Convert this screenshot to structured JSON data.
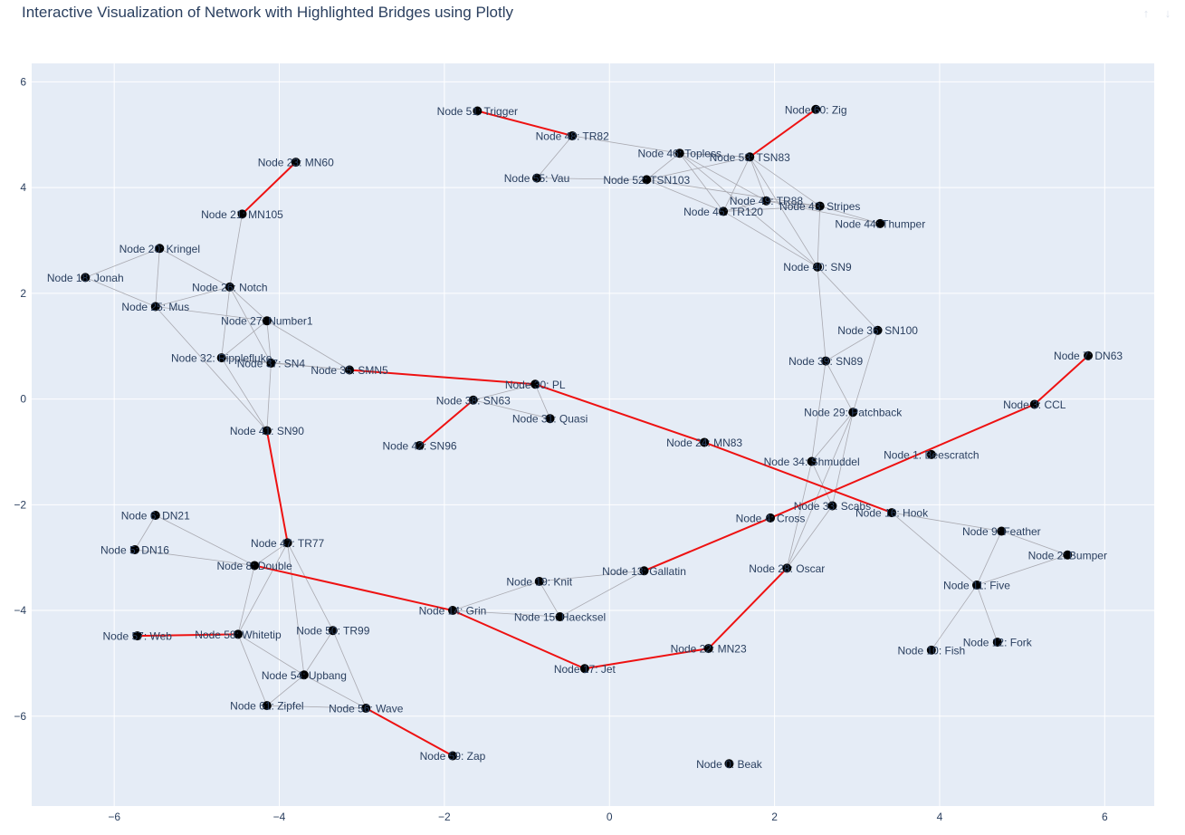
{
  "title": "Interactive Visualization of Network with Highlighted Bridges using Plotly",
  "modebar": {
    "icons": [
      "zoom-in-icon",
      "zoom-out-icon"
    ]
  },
  "colors": {
    "plot_bg": "#e5ecf6",
    "grid": "#ffffff",
    "edge": "#a9a9b0",
    "bridge": "#ee1111",
    "node": "#000000",
    "text": "#2a3f5f"
  },
  "chart_data": {
    "type": "scatter",
    "title": "Interactive Visualization of Network with Highlighted Bridges using Plotly",
    "xlabel": "",
    "ylabel": "",
    "xlim": [
      -7.0,
      6.6
    ],
    "ylim": [
      -7.7,
      6.35
    ],
    "xticks": [
      -6,
      -4,
      -2,
      0,
      2,
      4,
      6
    ],
    "yticks": [
      6,
      4,
      2,
      0,
      -2,
      -4,
      -6
    ],
    "grid": true,
    "nodes": [
      {
        "id": 0,
        "label": "Node 0: Beak",
        "x": 1.45,
        "y": -6.9
      },
      {
        "id": 1,
        "label": "Node 1: Beescratch",
        "x": 3.9,
        "y": -1.05
      },
      {
        "id": 2,
        "label": "Node 2: Bumper",
        "x": 5.55,
        "y": -2.95
      },
      {
        "id": 3,
        "label": "Node 3: CCL",
        "x": 5.15,
        "y": -0.1
      },
      {
        "id": 4,
        "label": "Node 4: Cross",
        "x": 1.95,
        "y": -2.25
      },
      {
        "id": 5,
        "label": "Node 5: DN16",
        "x": -5.75,
        "y": -2.85
      },
      {
        "id": 6,
        "label": "Node 6: DN21",
        "x": -5.5,
        "y": -2.2
      },
      {
        "id": 7,
        "label": "Node 7: DN63",
        "x": 5.8,
        "y": 0.82
      },
      {
        "id": 8,
        "label": "Node 8: Double",
        "x": -4.3,
        "y": -3.15
      },
      {
        "id": 9,
        "label": "Node 9: Feather",
        "x": 4.75,
        "y": -2.5
      },
      {
        "id": 10,
        "label": "Node 10: Fish",
        "x": 3.9,
        "y": -4.75
      },
      {
        "id": 11,
        "label": "Node 11: Five",
        "x": 4.45,
        "y": -3.52
      },
      {
        "id": 12,
        "label": "Node 12: Fork",
        "x": 4.7,
        "y": -4.6
      },
      {
        "id": 13,
        "label": "Node 13: Gallatin",
        "x": 0.42,
        "y": -3.25
      },
      {
        "id": 14,
        "label": "Node 14: Grin",
        "x": -1.9,
        "y": -4.0
      },
      {
        "id": 15,
        "label": "Node 15: Haecksel",
        "x": -0.6,
        "y": -4.12
      },
      {
        "id": 16,
        "label": "Node 16: Hook",
        "x": 3.42,
        "y": -2.15
      },
      {
        "id": 17,
        "label": "Node 17: Jet",
        "x": -0.3,
        "y": -5.1
      },
      {
        "id": 18,
        "label": "Node 18: Jonah",
        "x": -6.35,
        "y": 2.3
      },
      {
        "id": 19,
        "label": "Node 19: Knit",
        "x": -0.85,
        "y": -3.45
      },
      {
        "id": 20,
        "label": "Node 20: Kringel",
        "x": -5.45,
        "y": 2.85
      },
      {
        "id": 21,
        "label": "Node 21: MN105",
        "x": -4.45,
        "y": 3.5
      },
      {
        "id": 22,
        "label": "Node 22: MN23",
        "x": 1.2,
        "y": -4.72
      },
      {
        "id": 23,
        "label": "Node 23: MN60",
        "x": -3.8,
        "y": 4.48
      },
      {
        "id": 24,
        "label": "Node 24: MN83",
        "x": 1.15,
        "y": -0.82
      },
      {
        "id": 25,
        "label": "Node 25: Mus",
        "x": -5.5,
        "y": 1.75
      },
      {
        "id": 26,
        "label": "Node 26: Notch",
        "x": -4.6,
        "y": 2.12
      },
      {
        "id": 27,
        "label": "Node 27: Number1",
        "x": -4.15,
        "y": 1.48
      },
      {
        "id": 28,
        "label": "Node 28: Oscar",
        "x": 2.15,
        "y": -3.2
      },
      {
        "id": 29,
        "label": "Node 29: Patchback",
        "x": 2.95,
        "y": -0.25
      },
      {
        "id": 30,
        "label": "Node 30: PL",
        "x": -0.9,
        "y": 0.28
      },
      {
        "id": 31,
        "label": "Node 31: Quasi",
        "x": -0.72,
        "y": -0.37
      },
      {
        "id": 32,
        "label": "Node 32: Ripplefluke",
        "x": -4.7,
        "y": 0.78
      },
      {
        "id": 33,
        "label": "Node 33: Scabs",
        "x": 2.7,
        "y": -2.02
      },
      {
        "id": 34,
        "label": "Node 34: Shmuddel",
        "x": 2.45,
        "y": -1.18
      },
      {
        "id": 35,
        "label": "Node 35: SMN5",
        "x": -3.15,
        "y": 0.55
      },
      {
        "id": 36,
        "label": "Node 36: SN100",
        "x": 3.25,
        "y": 1.3
      },
      {
        "id": 37,
        "label": "Node 37: SN4",
        "x": -4.1,
        "y": 0.68
      },
      {
        "id": 38,
        "label": "Node 38: SN63",
        "x": -1.65,
        "y": -0.02
      },
      {
        "id": 39,
        "label": "Node 39: SN89",
        "x": 2.62,
        "y": 0.72
      },
      {
        "id": 40,
        "label": "Node 40: SN9",
        "x": 2.52,
        "y": 2.5
      },
      {
        "id": 41,
        "label": "Node 41: SN90",
        "x": -4.15,
        "y": -0.6
      },
      {
        "id": 42,
        "label": "Node 42: SN96",
        "x": -2.3,
        "y": -0.88
      },
      {
        "id": 43,
        "label": "Node 43: Stripes",
        "x": 2.55,
        "y": 3.65
      },
      {
        "id": 44,
        "label": "Node 44: Thumper",
        "x": 3.28,
        "y": 3.32
      },
      {
        "id": 45,
        "label": "Node 45: TR120",
        "x": 1.38,
        "y": 3.55
      },
      {
        "id": 46,
        "label": "Node 46: Topless",
        "x": 0.85,
        "y": 4.65
      },
      {
        "id": 47,
        "label": "Node 47: TR77",
        "x": -3.9,
        "y": -2.72
      },
      {
        "id": 48,
        "label": "Node 48: TR82",
        "x": -0.45,
        "y": 4.98
      },
      {
        "id": 49,
        "label": "Node 49: TR88",
        "x": 1.9,
        "y": 3.75
      },
      {
        "id": 50,
        "label": "Node 50: TR99",
        "x": -3.35,
        "y": -4.38
      },
      {
        "id": 51,
        "label": "Node 51: Trigger",
        "x": -1.6,
        "y": 5.45
      },
      {
        "id": 52,
        "label": "Node 52: TSN103",
        "x": 0.45,
        "y": 4.15
      },
      {
        "id": 53,
        "label": "Node 53: TSN83",
        "x": 1.7,
        "y": 4.58
      },
      {
        "id": 54,
        "label": "Node 54: Upbang",
        "x": -3.7,
        "y": -5.22
      },
      {
        "id": 55,
        "label": "Node 55: Vau",
        "x": -0.88,
        "y": 4.18
      },
      {
        "id": 56,
        "label": "Node 56: Wave",
        "x": -2.95,
        "y": -5.85
      },
      {
        "id": 57,
        "label": "Node 57: Web",
        "x": -5.72,
        "y": -4.48
      },
      {
        "id": 58,
        "label": "Node 58: Whitetip",
        "x": -4.5,
        "y": -4.45
      },
      {
        "id": 59,
        "label": "Node 59: Zap",
        "x": -1.9,
        "y": -6.75
      },
      {
        "id": 60,
        "label": "Node 60: Zig",
        "x": 2.5,
        "y": 5.48
      },
      {
        "id": 61,
        "label": "Node 61: Zipfel",
        "x": -4.15,
        "y": -5.8
      }
    ],
    "edges": [
      [
        21,
        26
      ],
      [
        20,
        18
      ],
      [
        20,
        26
      ],
      [
        20,
        25
      ],
      [
        18,
        25
      ],
      [
        25,
        26
      ],
      [
        25,
        27
      ],
      [
        25,
        41
      ],
      [
        26,
        27
      ],
      [
        26,
        37
      ],
      [
        26,
        32
      ],
      [
        32,
        27
      ],
      [
        32,
        37
      ],
      [
        27,
        37
      ],
      [
        27,
        35
      ],
      [
        32,
        35
      ],
      [
        37,
        35
      ],
      [
        32,
        41
      ],
      [
        37,
        41
      ],
      [
        6,
        5
      ],
      [
        6,
        8
      ],
      [
        5,
        8
      ],
      [
        47,
        8
      ],
      [
        47,
        58
      ],
      [
        47,
        50
      ],
      [
        47,
        54
      ],
      [
        8,
        58
      ],
      [
        58,
        54
      ],
      [
        58,
        61
      ],
      [
        54,
        50
      ],
      [
        54,
        61
      ],
      [
        54,
        56
      ],
      [
        50,
        56
      ],
      [
        61,
        56
      ],
      [
        14,
        19
      ],
      [
        14,
        15
      ],
      [
        19,
        13
      ],
      [
        19,
        15
      ],
      [
        15,
        13
      ],
      [
        38,
        30
      ],
      [
        38,
        31
      ],
      [
        30,
        31
      ],
      [
        48,
        46
      ],
      [
        48,
        55
      ],
      [
        55,
        52
      ],
      [
        52,
        46
      ],
      [
        52,
        53
      ],
      [
        52,
        45
      ],
      [
        52,
        43
      ],
      [
        46,
        53
      ],
      [
        46,
        45
      ],
      [
        46,
        49
      ],
      [
        46,
        40
      ],
      [
        53,
        49
      ],
      [
        53,
        45
      ],
      [
        53,
        43
      ],
      [
        53,
        40
      ],
      [
        49,
        43
      ],
      [
        49,
        44
      ],
      [
        49,
        45
      ],
      [
        45,
        43
      ],
      [
        45,
        40
      ],
      [
        43,
        40
      ],
      [
        43,
        44
      ],
      [
        40,
        39
      ],
      [
        40,
        36
      ],
      [
        39,
        36
      ],
      [
        39,
        29
      ],
      [
        39,
        34
      ],
      [
        36,
        29
      ],
      [
        29,
        34
      ],
      [
        29,
        28
      ],
      [
        34,
        28
      ],
      [
        34,
        33
      ],
      [
        33,
        28
      ],
      [
        29,
        33
      ],
      [
        16,
        9
      ],
      [
        16,
        11
      ],
      [
        9,
        11
      ],
      [
        9,
        2
      ],
      [
        11,
        2
      ],
      [
        11,
        12
      ],
      [
        11,
        10
      ]
    ],
    "bridges": [
      [
        21,
        23
      ],
      [
        51,
        48
      ],
      [
        53,
        60
      ],
      [
        41,
        47
      ],
      [
        35,
        30
      ],
      [
        38,
        42
      ],
      [
        30,
        24
      ],
      [
        24,
        16
      ],
      [
        3,
        7
      ],
      [
        3,
        4
      ],
      [
        4,
        13
      ],
      [
        8,
        14
      ],
      [
        14,
        17
      ],
      [
        17,
        22
      ],
      [
        22,
        28
      ],
      [
        57,
        58
      ],
      [
        56,
        59
      ]
    ]
  }
}
